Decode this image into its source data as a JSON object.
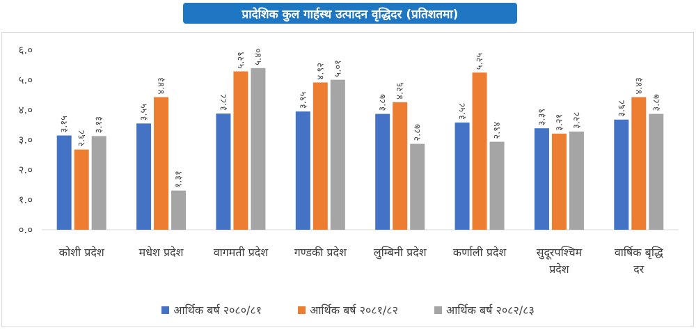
{
  "title": "प्रादेशिक कुल गार्हस्थ उत्पादन वृद्धिदर (प्रतिशतमा)",
  "chart_data": {
    "type": "bar",
    "title": "प्रादेशिक कुल गार्हस्थ उत्पादन वृद्धिदर (प्रतिशतमा)",
    "xlabel": "",
    "ylabel": "",
    "ylim": [
      0,
      6
    ],
    "grid": false,
    "legend_position": "bottom",
    "y_ticks": [
      0,
      1,
      2,
      3,
      4,
      5,
      6
    ],
    "y_tick_labels": [
      "०.०",
      "१.०",
      "२.०",
      "३.०",
      "४.०",
      "५.०",
      "६.०"
    ],
    "categories": [
      [
        "कोशी प्रदेश"
      ],
      [
        "मधेश प्रदेश"
      ],
      [
        "वागमती प्रदेश"
      ],
      [
        "गण्डकी प्रदेश"
      ],
      [
        "लुम्बिनी प्रदेश"
      ],
      [
        "कर्णाली प्रदेश"
      ],
      [
        "सुदूरपश्चिम",
        "प्रदेश"
      ],
      [
        "वार्षिक बृद्धि",
        "दर"
      ]
    ],
    "series": [
      {
        "name": "आर्थिक बर्ष २०८०/८१",
        "color": "#4472c4",
        "values": [
          3.15,
          3.55,
          3.88,
          3.95,
          3.87,
          3.58,
          3.39,
          3.68
        ],
        "labels": [
          "३.१५",
          "३.५५",
          "३.८८",
          "३.९५",
          "३.८७",
          "३.५८",
          "३.३९",
          "३.६८"
        ]
      },
      {
        "name": "आर्थिक बर्ष २०८१/८२",
        "color": "#ed7d31",
        "values": [
          2.68,
          4.43,
          5.29,
          4.92,
          4.26,
          5.25,
          3.21,
          4.43
        ],
        "labels": [
          "२.६८",
          "४.४३",
          "५.२९",
          "४.९२",
          "४.२६",
          "५.२५",
          "३.२१",
          "४.४३"
        ]
      },
      {
        "name": "आर्थिक बर्ष २०८२/८३",
        "color": "#a5a5a5",
        "values": [
          3.13,
          1.31,
          5.4,
          5.01,
          2.87,
          2.94,
          3.28,
          3.87
        ],
        "labels": [
          "३.१३",
          "१.३१",
          "५.४०",
          "५.०१",
          "२.८७",
          "२.९४",
          "३.२८",
          "३.८७"
        ]
      }
    ]
  }
}
